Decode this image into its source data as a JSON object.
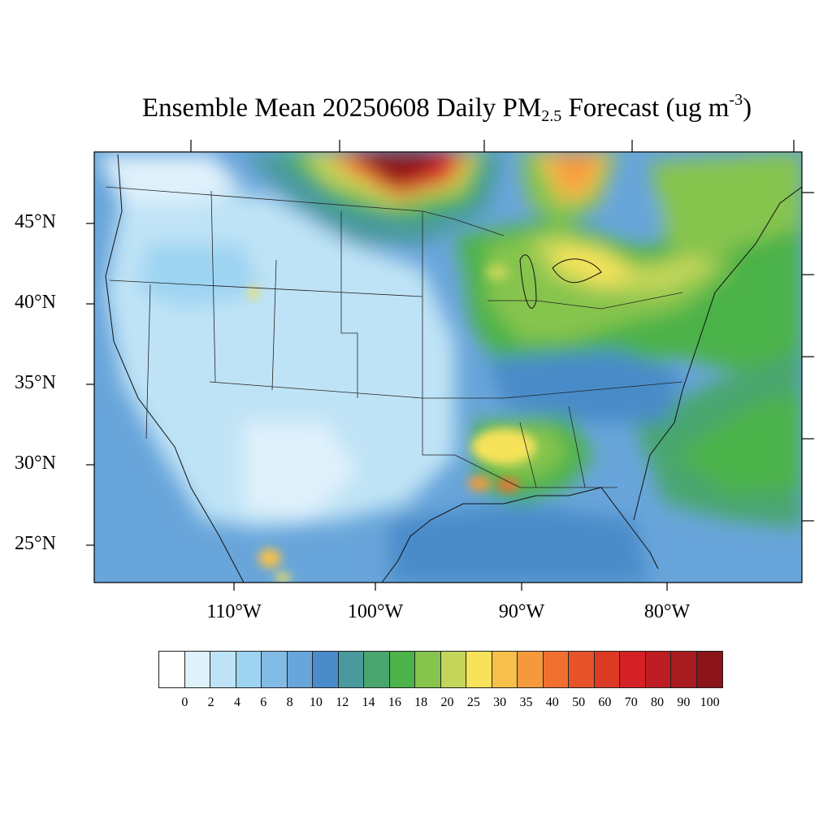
{
  "title": {
    "main": "Ensemble Mean 20250608 Daily PM",
    "sub": "2.5",
    "after": " Forecast (ug m",
    "sup": "-3",
    "close": ")"
  },
  "lat_labels": [
    "45°N",
    "40°N",
    "35°N",
    "30°N",
    "25°N"
  ],
  "lon_labels": [
    "110°W",
    "100°W",
    "90°W",
    "80°W"
  ],
  "colorbar": {
    "colors": [
      "#ffffff",
      "#dff1fb",
      "#bfe3f6",
      "#9dd4f2",
      "#82bbe4",
      "#68a5da",
      "#4a8bc9",
      "#4a9a9d",
      "#4aa66e",
      "#4cb24a",
      "#86c44e",
      "#c3d65a",
      "#f6e35a",
      "#f6c04a",
      "#f59a3c",
      "#f17030",
      "#e6522a",
      "#dd3a26",
      "#d32126",
      "#be1d24",
      "#a81b20",
      "#8b1419"
    ],
    "ticks": [
      "0",
      "2",
      "4",
      "6",
      "8",
      "10",
      "12",
      "14",
      "16",
      "18",
      "20",
      "25",
      "30",
      "35",
      "40",
      "50",
      "60",
      "70",
      "80",
      "90",
      "100"
    ]
  }
}
